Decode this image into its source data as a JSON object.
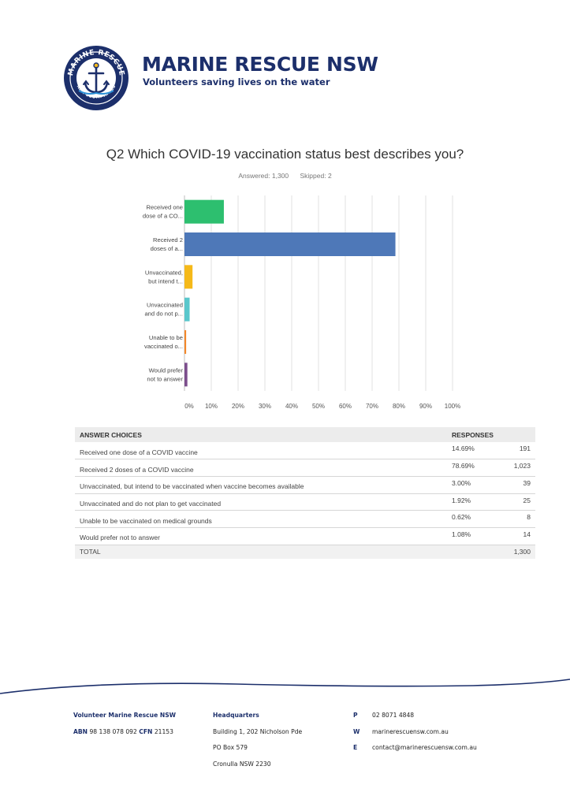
{
  "brand": {
    "name": "MARINE RESCUE NSW",
    "tagline": "Volunteers saving lives on the water",
    "logo_top_text": "MARINE RESCUE",
    "logo_bottom_text": "NEW SOUTH WALES",
    "logo_icon": "anchor-icon"
  },
  "question": {
    "title": "Q2 Which COVID-19 vaccination status best describes you?",
    "answered": "Answered: 1,300",
    "skipped": "Skipped: 2"
  },
  "chart_data": {
    "type": "bar",
    "orientation": "horizontal",
    "categories": [
      [
        "Received one",
        "dose of a CO..."
      ],
      [
        "Received 2",
        "doses of a..."
      ],
      [
        "Unvaccinated,",
        "but intend t..."
      ],
      [
        "Unvaccinated",
        "and do not p..."
      ],
      [
        "Unable to be",
        "vaccinated o..."
      ],
      [
        "Would prefer",
        "not to answer"
      ]
    ],
    "values": [
      14.69,
      78.69,
      3.0,
      1.92,
      0.62,
      1.08
    ],
    "colors": [
      "#2dbf6f",
      "#4e78b8",
      "#f5b919",
      "#59c7cc",
      "#f3872a",
      "#7c4e8c"
    ],
    "xlim": [
      0,
      100
    ],
    "x_ticks": [
      "0%",
      "10%",
      "20%",
      "30%",
      "40%",
      "50%",
      "60%",
      "70%",
      "80%",
      "90%",
      "100%"
    ],
    "grid": true
  },
  "table": {
    "headers": {
      "choices": "ANSWER CHOICES",
      "responses": "RESPONSES"
    },
    "rows": [
      {
        "label": "Received one dose of a COVID vaccine",
        "pct": "14.69%",
        "count": "191"
      },
      {
        "label": "Received 2 doses of a COVID vaccine",
        "pct": "78.69%",
        "count": "1,023"
      },
      {
        "label": "Unvaccinated, but intend to be vaccinated when vaccine becomes available",
        "pct": "3.00%",
        "count": "39"
      },
      {
        "label": "Unvaccinated and do not plan to get vaccinated",
        "pct": "1.92%",
        "count": "25"
      },
      {
        "label": "Unable to be vaccinated on medical grounds",
        "pct": "0.62%",
        "count": "8"
      },
      {
        "label": "Would prefer not to answer",
        "pct": "1.08%",
        "count": "14"
      }
    ],
    "total": {
      "label": "TOTAL",
      "count": "1,300"
    }
  },
  "footer": {
    "org": "Volunteer Marine Rescue NSW",
    "abn_label": "ABN",
    "abn": "98 138 078 092",
    "cfn_label": "CFN",
    "cfn": "21153",
    "hq_label": "Headquarters",
    "address": [
      "Building 1, 202 Nicholson Pde",
      "PO Box 579",
      "Cronulla NSW 2230"
    ],
    "contacts": [
      {
        "key": "P",
        "value": "02 8071 4848"
      },
      {
        "key": "W",
        "value": "marinerescuensw.com.au"
      },
      {
        "key": "E",
        "value": "contact@marinerescuensw.com.au"
      }
    ]
  }
}
